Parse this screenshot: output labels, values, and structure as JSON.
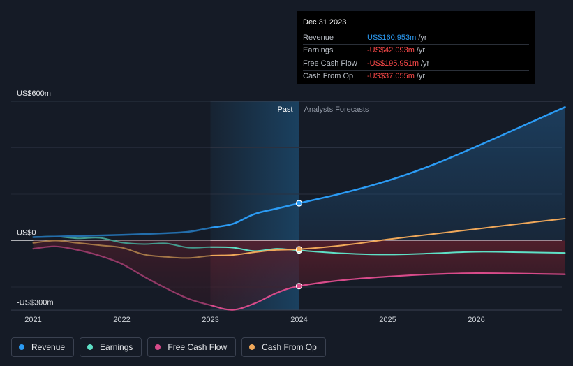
{
  "chart_data": {
    "type": "line",
    "y_unit": "US$ m",
    "ylim": [
      -300,
      600
    ],
    "xlim": [
      2021,
      2027
    ],
    "y_axis_labels": [
      {
        "label": "US$600m",
        "value": 600
      },
      {
        "label": "US$0",
        "value": 0
      },
      {
        "label": "-US$300m",
        "value": -300
      }
    ],
    "x_ticks": [
      {
        "label": "2021",
        "value": 2021
      },
      {
        "label": "2022",
        "value": 2022
      },
      {
        "label": "2023",
        "value": 2023
      },
      {
        "label": "2024",
        "value": 2024
      },
      {
        "label": "2025",
        "value": 2025
      },
      {
        "label": "2026",
        "value": 2026
      }
    ],
    "divider_x": 2024,
    "past_label": "Past",
    "forecast_label": "Analysts Forecasts",
    "series": [
      {
        "name": "Revenue",
        "color": "#2b9bf4",
        "points": [
          [
            2021,
            15
          ],
          [
            2021.5,
            20
          ],
          [
            2022,
            25
          ],
          [
            2022.5,
            32
          ],
          [
            2022.75,
            38
          ],
          [
            2023,
            55
          ],
          [
            2023.25,
            72
          ],
          [
            2023.5,
            115
          ],
          [
            2023.75,
            138
          ],
          [
            2024,
            161
          ],
          [
            2024.5,
            205
          ],
          [
            2025,
            258
          ],
          [
            2025.5,
            325
          ],
          [
            2026,
            405
          ],
          [
            2026.5,
            490
          ],
          [
            2027,
            575
          ]
        ],
        "forecast_from": 2024
      },
      {
        "name": "Earnings",
        "color": "#5ee0c6",
        "points": [
          [
            2021,
            15
          ],
          [
            2021.25,
            18
          ],
          [
            2021.5,
            10
          ],
          [
            2021.75,
            12
          ],
          [
            2022,
            -8
          ],
          [
            2022.25,
            -15
          ],
          [
            2022.5,
            -12
          ],
          [
            2022.75,
            -30
          ],
          [
            2023,
            -28
          ],
          [
            2023.25,
            -30
          ],
          [
            2023.5,
            -45
          ],
          [
            2023.75,
            -35
          ],
          [
            2024,
            -42
          ],
          [
            2024.5,
            -55
          ],
          [
            2025,
            -60
          ],
          [
            2025.5,
            -55
          ],
          [
            2026,
            -48
          ],
          [
            2026.5,
            -50
          ],
          [
            2027,
            -53
          ]
        ],
        "forecast_from": 2024
      },
      {
        "name": "Free Cash Flow",
        "color": "#d84b8a",
        "points": [
          [
            2021,
            -35
          ],
          [
            2021.25,
            -25
          ],
          [
            2021.5,
            -40
          ],
          [
            2021.75,
            -65
          ],
          [
            2022,
            -100
          ],
          [
            2022.25,
            -155
          ],
          [
            2022.5,
            -205
          ],
          [
            2022.75,
            -250
          ],
          [
            2023,
            -278
          ],
          [
            2023.25,
            -298
          ],
          [
            2023.5,
            -270
          ],
          [
            2023.75,
            -225
          ],
          [
            2024,
            -196
          ],
          [
            2024.5,
            -170
          ],
          [
            2025,
            -155
          ],
          [
            2025.5,
            -145
          ],
          [
            2026,
            -140
          ],
          [
            2026.5,
            -142
          ],
          [
            2027,
            -145
          ]
        ],
        "forecast_from": 2024
      },
      {
        "name": "Cash From Op",
        "color": "#f0a85a",
        "points": [
          [
            2021,
            -10
          ],
          [
            2021.25,
            0
          ],
          [
            2021.5,
            -10
          ],
          [
            2021.75,
            -20
          ],
          [
            2022,
            -30
          ],
          [
            2022.25,
            -60
          ],
          [
            2022.5,
            -70
          ],
          [
            2022.75,
            -75
          ],
          [
            2023,
            -65
          ],
          [
            2023.25,
            -62
          ],
          [
            2023.5,
            -50
          ],
          [
            2023.75,
            -40
          ],
          [
            2024,
            -37
          ],
          [
            2024.5,
            -20
          ],
          [
            2025,
            5
          ],
          [
            2025.5,
            28
          ],
          [
            2026,
            50
          ],
          [
            2026.5,
            73
          ],
          [
            2027,
            95
          ]
        ],
        "forecast_from": 2024
      }
    ],
    "legend": [
      {
        "label": "Revenue",
        "color": "#2b9bf4"
      },
      {
        "label": "Earnings",
        "color": "#5ee0c6"
      },
      {
        "label": "Free Cash Flow",
        "color": "#d84b8a"
      },
      {
        "label": "Cash From Op",
        "color": "#f0a85a"
      }
    ],
    "tooltip": {
      "date": "Dec 31 2023",
      "rows": [
        {
          "label": "Revenue",
          "value": "US$160.953m",
          "unit": "/yr",
          "color": "#2b9bf4"
        },
        {
          "label": "Earnings",
          "value": "-US$42.093m",
          "unit": "/yr",
          "color": "#ff4a4a"
        },
        {
          "label": "Free Cash Flow",
          "value": "-US$195.951m",
          "unit": "/yr",
          "color": "#ff4a4a"
        },
        {
          "label": "Cash From Op",
          "value": "-US$37.055m",
          "unit": "/yr",
          "color": "#ff4a4a"
        }
      ]
    }
  }
}
